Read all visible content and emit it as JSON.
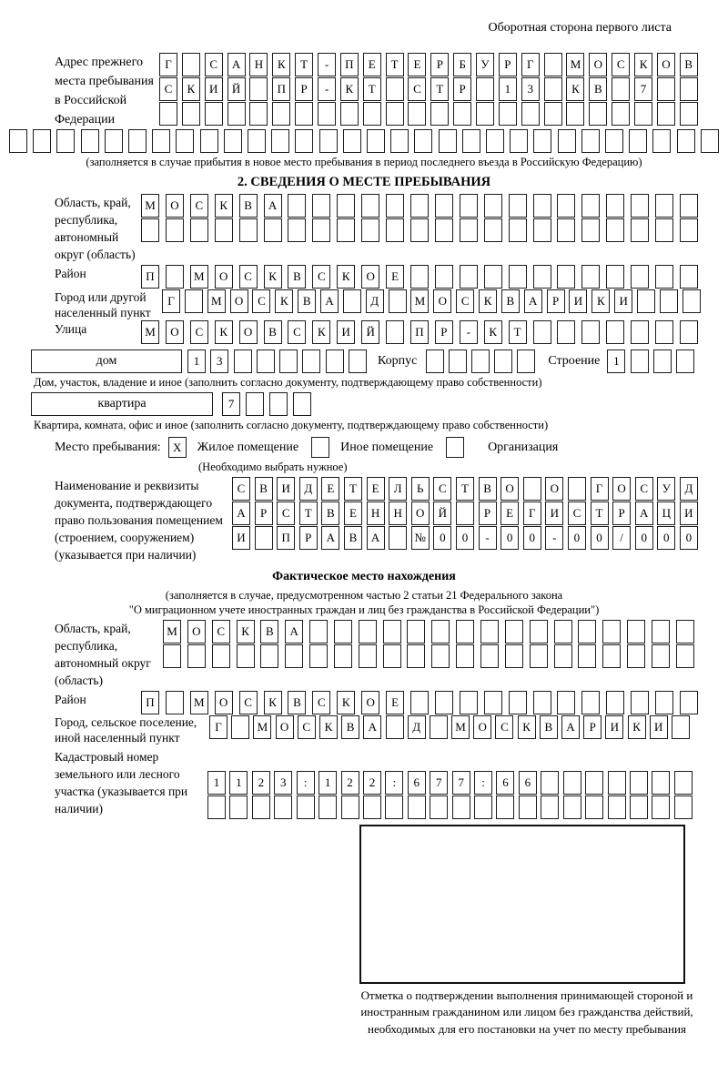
{
  "page": {
    "header_note": "Оборотная сторона первого листа"
  },
  "prev_address": {
    "label": "Адрес прежнего места пребывания в Российской Федерации",
    "rows": [
      {
        "chars": "Г САНКТ-ПЕТЕРБУРГ МОСКОВ",
        "len": 24
      },
      {
        "chars": "СКИЙ ПР-КТ СТР 13 КВ 7",
        "len": 24
      },
      {
        "chars": "",
        "len": 24
      }
    ],
    "overflow_row": {
      "chars": "",
      "len": 30
    },
    "note": "(заполняется в случае прибытия в новое место пребывания в период последнего въезда в Российскую Федерацию)"
  },
  "section2": {
    "title": "2. СВЕДЕНИЯ О МЕСТЕ ПРЕБЫВАНИЯ",
    "region": {
      "label": "Область, край, республика, автономный округ (область)",
      "rows": [
        {
          "chars": "МОСКВА",
          "len": 23
        },
        {
          "chars": "",
          "len": 23
        }
      ]
    },
    "district": {
      "label": "Район",
      "row": {
        "chars": "П МОСКВСКОЕ",
        "len": 23
      }
    },
    "city": {
      "label": "Город или другой населенный пункт",
      "row": {
        "chars": "Г МОСКВА Д МОСКВАРИКИ",
        "len": 24
      }
    },
    "street": {
      "label": "Улица",
      "row": {
        "chars": "МОСКОВСКИЙ ПР-КТ",
        "len": 23
      }
    },
    "house": {
      "box_label": "дом",
      "number": {
        "chars": "13",
        "len": 8
      },
      "korpus_label": "Корпус",
      "korpus": {
        "chars": "",
        "len": 5
      },
      "stroenie_label": "Строение",
      "stroenie": {
        "chars": "1",
        "len": 4
      }
    },
    "house_note": "Дом, участок, владение и иное (заполнить согласно документу, подтверждающему право собственности)",
    "apartment": {
      "box_label": "квартира",
      "number": {
        "chars": "7",
        "len": 4
      }
    },
    "apartment_note": "Квартира, комната, офис и иное (заполнить согласно документу, подтверждающему право собственности)",
    "place_type": {
      "label": "Место пребывания:",
      "options": [
        {
          "mark": "X",
          "label": "Жилое помещение"
        },
        {
          "mark": "",
          "label": "Иное помещение"
        },
        {
          "mark": "",
          "label": "Организация"
        }
      ],
      "note": "(Необходимо выбрать нужное)"
    },
    "document": {
      "label": "Наименование и реквизиты документа, подтверждающего право пользования помещением (строением, сооружением) (указывается при наличии)",
      "rows": [
        {
          "chars": "СВИДЕТЕЛЬСТВО О ГОСУД",
          "len": 21
        },
        {
          "chars": "АРСТВЕННОЙ РЕГИСТРАЦИ",
          "len": 21
        },
        {
          "chars": "И ПРАВА №00-00-00/000",
          "len": 21
        }
      ]
    }
  },
  "actual_location": {
    "title": "Фактическое место нахождения",
    "note_line1": "(заполняется в случае, предусмотренном частью 2 статьи 21 Федерального закона",
    "note_line2": "\"О миграционном учете иностранных граждан и лиц без гражданства в Российской Федерации\")",
    "region": {
      "label": "Область, край, республика, автономный округ (область)",
      "rows": [
        {
          "chars": "МОСКВА",
          "len": 22
        },
        {
          "chars": "",
          "len": 22
        }
      ]
    },
    "district": {
      "label": "Район",
      "row": {
        "chars": "П МОСКВСКОЕ",
        "len": 23
      }
    },
    "city": {
      "label": "Город, сельское поселение, иной населенный пункт",
      "row": {
        "chars": "Г МОСКВА Д МОСКВАРИКИ",
        "len": 22
      }
    },
    "cadastre": {
      "label": "Кадастровый номер земельного или лесного участка (указывается при наличии)",
      "rows": [
        {
          "chars": "1123:122:677:66",
          "len": 22
        },
        {
          "chars": "",
          "len": 22
        }
      ]
    },
    "stamp_box_note": "Отметка о подтверждении выполнения принимающей стороной и иностранным гражданином или лицом без гражданства действий, необходимых для его постановки на учет по месту пребывания"
  }
}
